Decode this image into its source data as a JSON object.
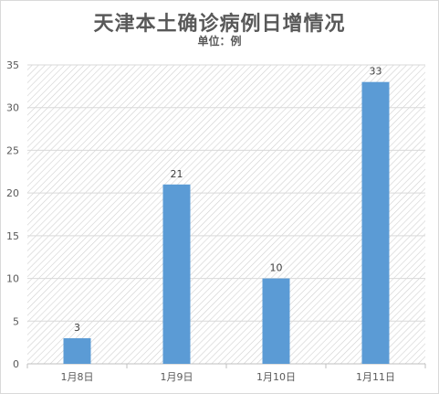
{
  "chart_data": {
    "type": "bar",
    "title": "天津本土确诊病例日增情况",
    "subtitle": "单位：例",
    "categories": [
      "1月8日",
      "1月9日",
      "1月10日",
      "1月11日"
    ],
    "values": [
      3,
      21,
      10,
      33
    ],
    "data_labels": [
      "3",
      "21",
      "10",
      "33"
    ],
    "ylim": [
      0,
      35
    ],
    "yticks": [
      0,
      5,
      10,
      15,
      20,
      25,
      30,
      35
    ],
    "grid": true,
    "legend": "none",
    "colors": {
      "bar": "#5b9bd5",
      "grid": "#d9d9d9",
      "hatch": "#d0d0d0",
      "text": "#595959"
    }
  }
}
